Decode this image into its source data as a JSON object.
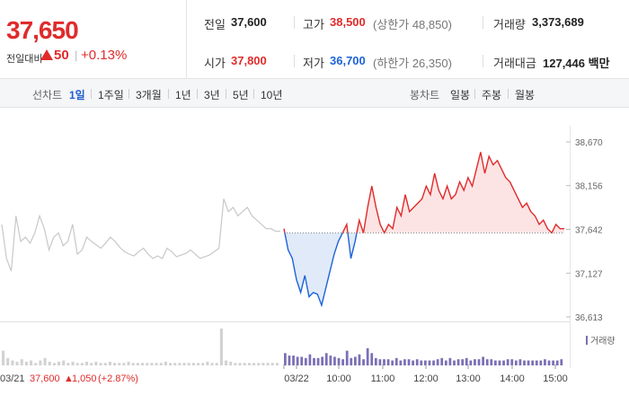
{
  "summary": {
    "current_price": "37,650",
    "change_label": "전일대비",
    "change_amount": "50",
    "change_rate": "+0.13%",
    "separator": "|",
    "items": {
      "prev_close": {
        "label": "전일",
        "value": "37,600"
      },
      "high": {
        "label": "고가",
        "value": "38,500",
        "sub": "(상한가 48,850)"
      },
      "volume": {
        "label": "거래량",
        "value": "3,373,689"
      },
      "open": {
        "label": "시가",
        "value": "37,800"
      },
      "low": {
        "label": "저가",
        "value": "36,700",
        "sub": "(하한가 26,350)"
      },
      "amount": {
        "label": "거래대금",
        "value": "127,446 백만"
      }
    }
  },
  "toolbar": {
    "line_label": "선차트",
    "line_periods": [
      "1일",
      "1주일",
      "3개월",
      "1년",
      "3년",
      "5년",
      "10년"
    ],
    "line_active": "1일",
    "candle_label": "봉차트",
    "candle_periods": [
      "일봉",
      "주봉",
      "월봉"
    ]
  },
  "colors": {
    "up": "#e02b2b",
    "down": "#1d63d8",
    "prev_day_line": "#c8c8c8",
    "volume_bar": "#7b6fb5",
    "up_fill": "#fde1e1",
    "down_fill": "#dde8f7"
  },
  "chart_data": {
    "type": "line",
    "y_ticks": [
      "38,670",
      "38,156",
      "37,642",
      "37,127",
      "36,613"
    ],
    "ylim": [
      36613,
      38670
    ],
    "baseline": 37600,
    "legend": "거래량",
    "x_ticks": [
      "03/21",
      "03/22",
      "10:00",
      "11:00",
      "12:00",
      "13:00",
      "14:00",
      "15:00"
    ],
    "prev_day_caption": {
      "date": "03/21",
      "price": "37,600",
      "change": "1,050",
      "rate": "(+2.87%)"
    },
    "prev_day_series": {
      "name": "03/21",
      "values": [
        37700,
        37300,
        37150,
        37800,
        37500,
        37550,
        37480,
        37600,
        37800,
        37650,
        37400,
        37550,
        37600,
        37450,
        37500,
        37700,
        37350,
        37400,
        37550,
        37500,
        37460,
        37420,
        37480,
        37550,
        37500,
        37430,
        37380,
        37350,
        37330,
        37380,
        37420,
        37350,
        37300,
        37330,
        37300,
        37420,
        37380,
        37320,
        37340,
        37360,
        37400,
        37350,
        37300,
        37320,
        37340,
        37380,
        37420,
        38000,
        37850,
        37900,
        37800,
        37850,
        37900,
        37800,
        37750,
        37700,
        37650,
        37650,
        37620,
        37620
      ]
    },
    "today_series": {
      "name": "03/22",
      "values": [
        37650,
        37400,
        37300,
        37050,
        36900,
        37100,
        36850,
        36900,
        36880,
        36750,
        36950,
        37150,
        37350,
        37500,
        37600,
        37700,
        37300,
        37500,
        37750,
        37600,
        37900,
        38150,
        37900,
        37700,
        37600,
        37700,
        37650,
        37900,
        37800,
        38050,
        37850,
        37900,
        37950,
        38000,
        38150,
        38050,
        38300,
        38100,
        38000,
        38150,
        38000,
        38050,
        38200,
        38100,
        38250,
        38150,
        38350,
        38550,
        38300,
        38500,
        38400,
        38450,
        38350,
        38250,
        38200,
        38100,
        38000,
        37900,
        37950,
        37850,
        37800,
        37700,
        37750,
        37650,
        37600,
        37700,
        37650,
        37650
      ]
    },
    "prev_day_volume": [
      12,
      6,
      4,
      3,
      5,
      3,
      4,
      2,
      4,
      6,
      3,
      2,
      3,
      4,
      2,
      3,
      2,
      2,
      3,
      2,
      3,
      2,
      2,
      3,
      2,
      2,
      2,
      3,
      2,
      2,
      2,
      2,
      2,
      2,
      2,
      3,
      2,
      2,
      2,
      2,
      2,
      2,
      2,
      2,
      3,
      2,
      2,
      30,
      4,
      3,
      2,
      2,
      2,
      2,
      2,
      2,
      2,
      2,
      2,
      2
    ],
    "today_volume": [
      10,
      8,
      8,
      7,
      7,
      6,
      9,
      6,
      6,
      7,
      10,
      8,
      7,
      6,
      5,
      12,
      6,
      7,
      9,
      5,
      14,
      10,
      6,
      5,
      5,
      5,
      4,
      6,
      4,
      5,
      5,
      4,
      5,
      4,
      4,
      4,
      4,
      5,
      6,
      4,
      6,
      4,
      5,
      5,
      6,
      4,
      5,
      5,
      7,
      5,
      5,
      4,
      4,
      4,
      5,
      5,
      4,
      5,
      4,
      4,
      4,
      4,
      4,
      5,
      4,
      4,
      4,
      5
    ]
  }
}
